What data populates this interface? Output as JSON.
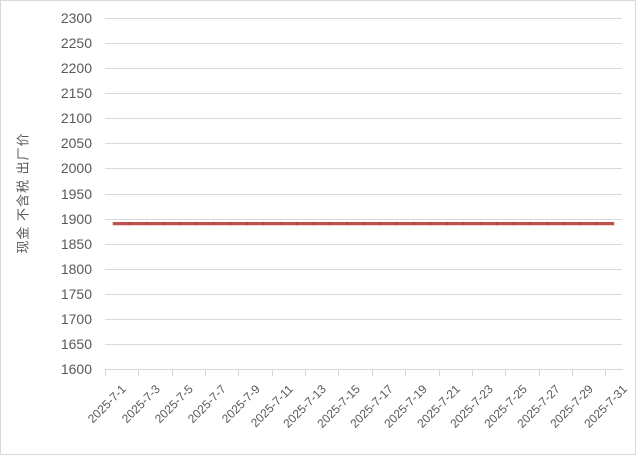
{
  "chart_data": {
    "type": "line",
    "title": "",
    "xlabel": "",
    "ylabel": "现金 不含税 出厂价",
    "ylim": [
      1600,
      2300
    ],
    "y_tick_step": 50,
    "grid": true,
    "legend_position": "none",
    "x": [
      "2025-7-1",
      "2025-7-2",
      "2025-7-3",
      "2025-7-4",
      "2025-7-5",
      "2025-7-6",
      "2025-7-7",
      "2025-7-8",
      "2025-7-9",
      "2025-7-10",
      "2025-7-11",
      "2025-7-12",
      "2025-7-13",
      "2025-7-14",
      "2025-7-15",
      "2025-7-16",
      "2025-7-17",
      "2025-7-18",
      "2025-7-19",
      "2025-7-20",
      "2025-7-21",
      "2025-7-22",
      "2025-7-23",
      "2025-7-24",
      "2025-7-25",
      "2025-7-26",
      "2025-7-27",
      "2025-7-28",
      "2025-7-29",
      "2025-7-30",
      "2025-7-31"
    ],
    "x_tick_labels": [
      "2025-7-1",
      "2025-7-3",
      "2025-7-5",
      "2025-7-7",
      "2025-7-9",
      "2025-7-11",
      "2025-7-13",
      "2025-7-15",
      "2025-7-17",
      "2025-7-19",
      "2025-7-21",
      "2025-7-23",
      "2025-7-25",
      "2025-7-27",
      "2025-7-29",
      "2025-7-31"
    ],
    "series": [
      {
        "name": "现金 不含税 出厂价",
        "color": "#C0504D",
        "values": [
          1890,
          1890,
          1890,
          1890,
          1890,
          1890,
          1890,
          1890,
          1890,
          1890,
          1890,
          1890,
          1890,
          1890,
          1890,
          1890,
          1890,
          1890,
          1890,
          1890,
          1890,
          1890,
          1890,
          1890,
          1890,
          1890,
          1890,
          1890,
          1890,
          1890,
          1890
        ]
      }
    ]
  },
  "colors": {
    "background": "#FFFFFF",
    "border": "#D9D9D9",
    "grid": "#D9D9D9",
    "axis": "#D5D5D5",
    "text": "#595959",
    "series": "#C0504D",
    "series_point_mark": "#A23F3C"
  }
}
